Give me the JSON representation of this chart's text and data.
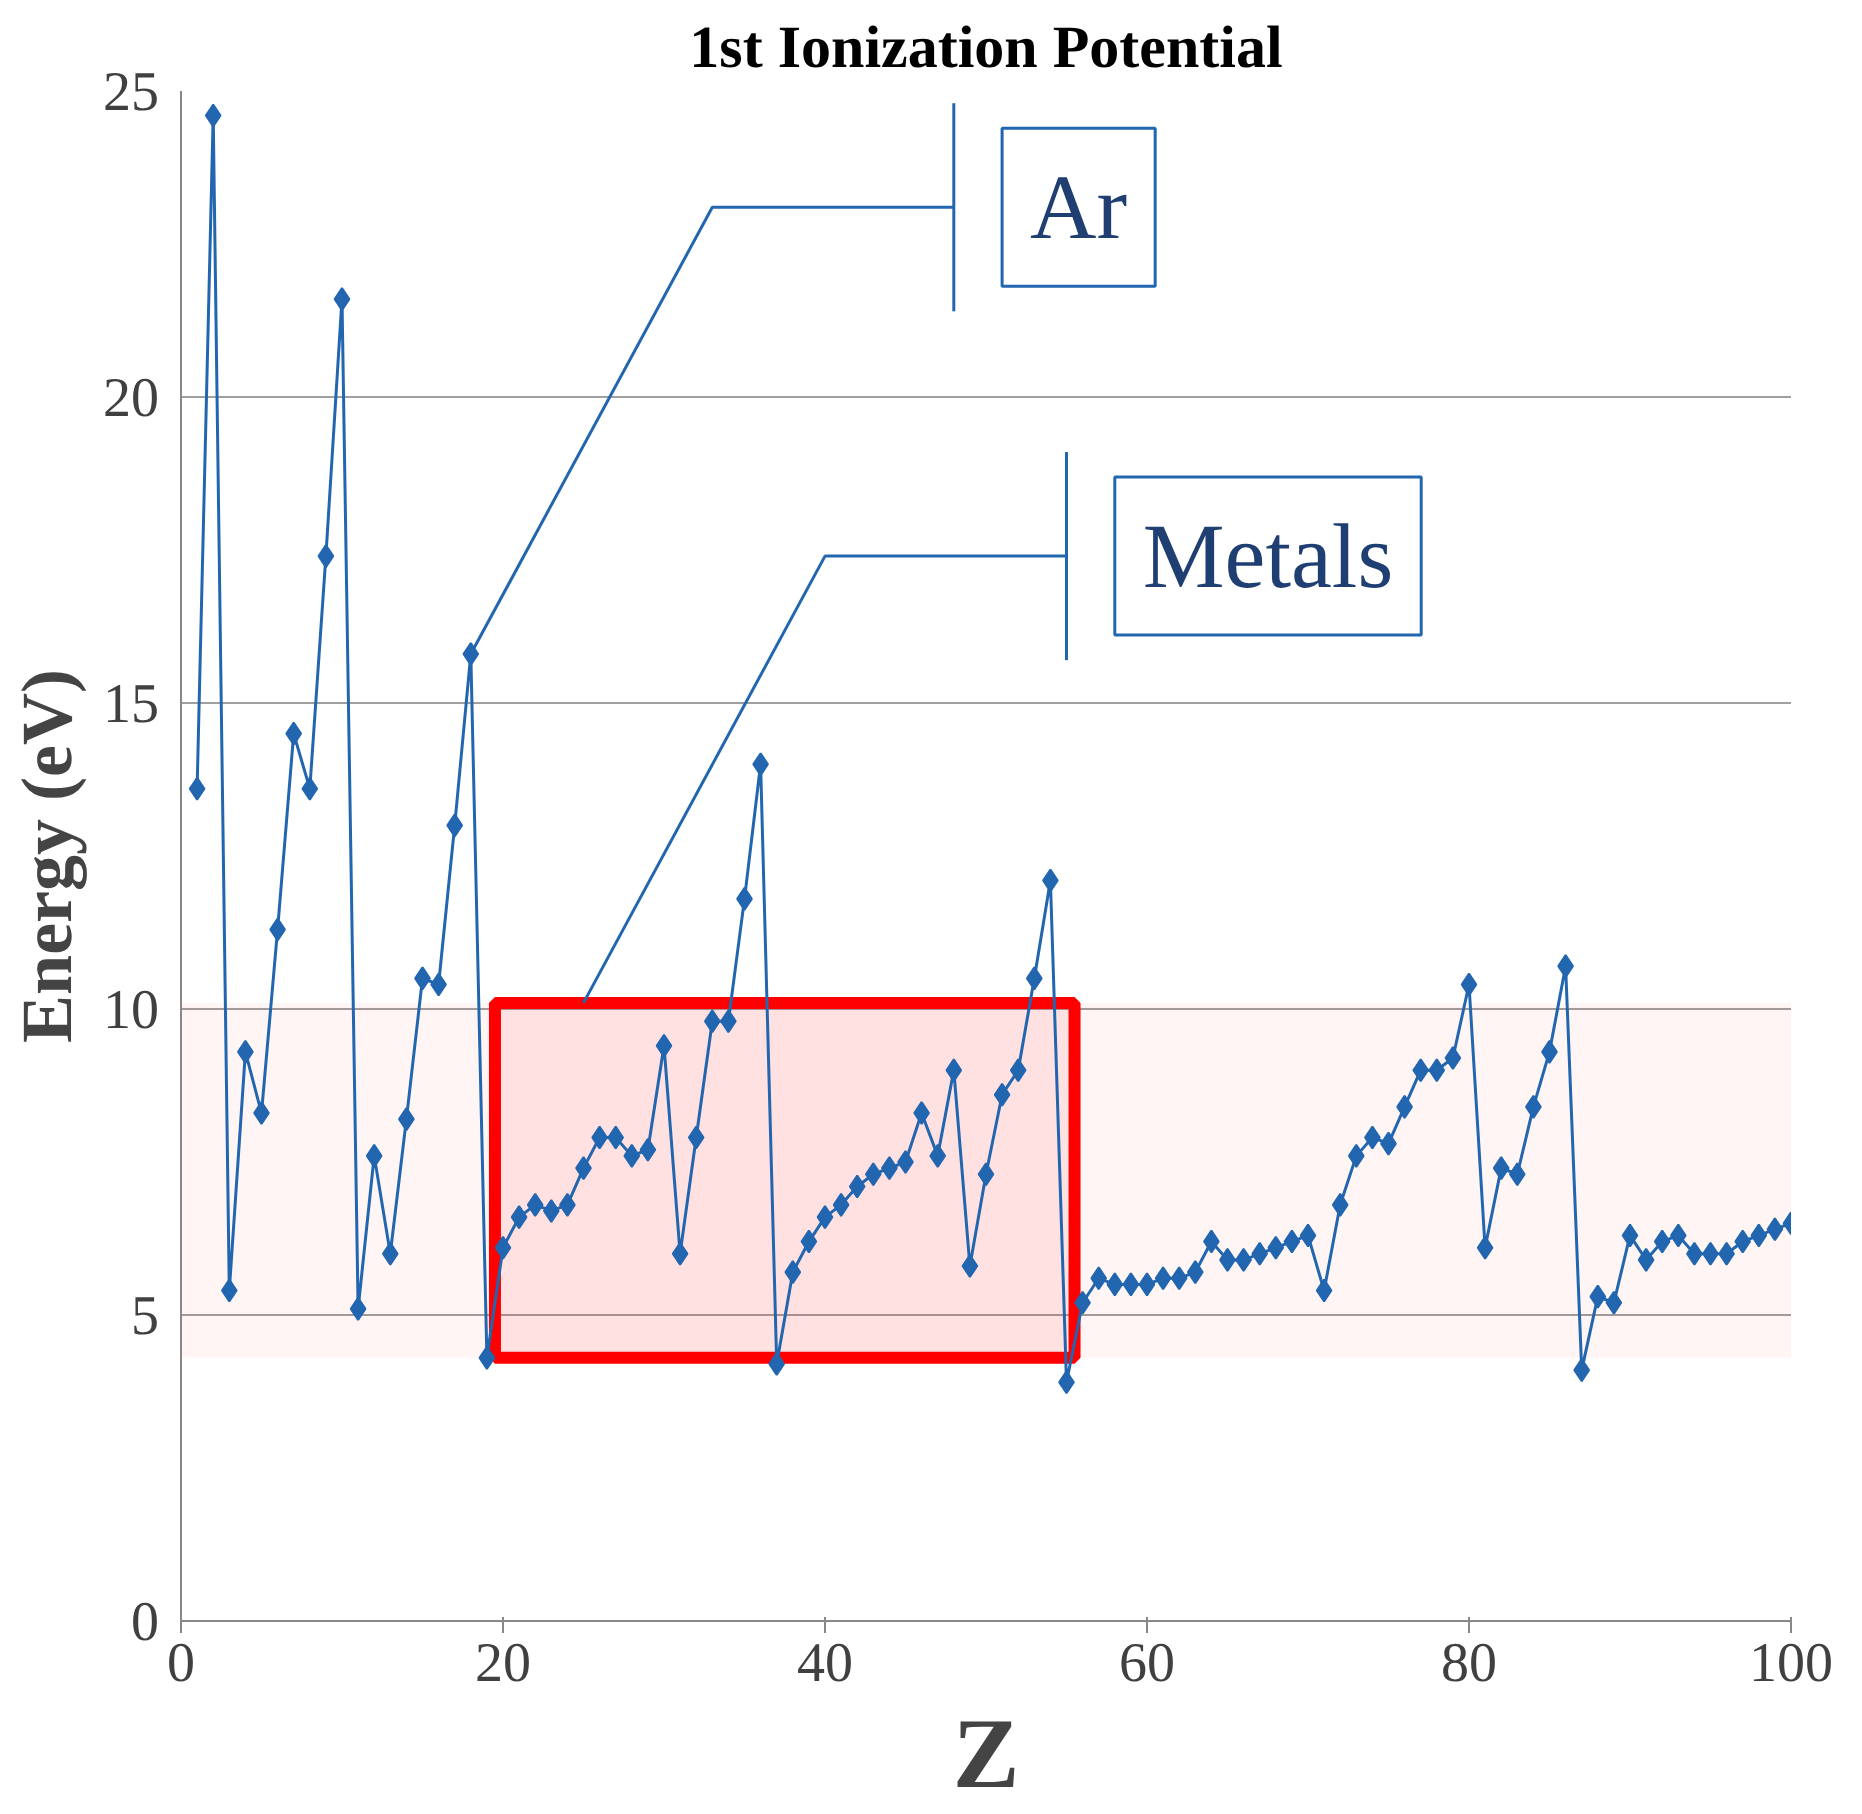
{
  "chart_data": {
    "type": "line",
    "title": "1st Ionization Potential",
    "xlabel": "Z",
    "ylabel": "Energy (eV)",
    "x": [
      1,
      2,
      3,
      4,
      5,
      6,
      7,
      8,
      9,
      10,
      11,
      12,
      13,
      14,
      15,
      16,
      17,
      18,
      19,
      20,
      21,
      22,
      23,
      24,
      25,
      26,
      27,
      28,
      29,
      30,
      31,
      32,
      33,
      34,
      35,
      36,
      37,
      38,
      39,
      40,
      41,
      42,
      43,
      44,
      45,
      46,
      47,
      48,
      49,
      50,
      51,
      52,
      53,
      54,
      55,
      56,
      57,
      58,
      59,
      60,
      61,
      62,
      63,
      64,
      65,
      66,
      67,
      68,
      69,
      70,
      71,
      72,
      73,
      74,
      75,
      76,
      77,
      78,
      79,
      80,
      81,
      82,
      83,
      84,
      85,
      86,
      87,
      88,
      89,
      90,
      91,
      92,
      93,
      94,
      95,
      96,
      97,
      98,
      99,
      100
    ],
    "series": [
      {
        "color": "#2266b0",
        "values": [
          13.6,
          24.6,
          5.4,
          9.3,
          8.3,
          11.3,
          14.5,
          13.6,
          17.4,
          21.6,
          5.1,
          7.6,
          6.0,
          8.2,
          10.5,
          10.4,
          13.0,
          15.8,
          4.3,
          6.1,
          6.6,
          6.8,
          6.7,
          6.8,
          7.4,
          7.9,
          7.9,
          7.6,
          7.7,
          9.4,
          6.0,
          7.9,
          9.8,
          9.8,
          11.8,
          14.0,
          4.2,
          5.7,
          6.2,
          6.6,
          6.8,
          7.1,
          7.3,
          7.4,
          7.5,
          8.3,
          7.6,
          9.0,
          5.8,
          7.3,
          8.6,
          9.0,
          10.5,
          12.1,
          3.9,
          5.2,
          5.6,
          5.5,
          5.5,
          5.5,
          5.6,
          5.6,
          5.7,
          6.2,
          5.9,
          5.9,
          6.0,
          6.1,
          6.2,
          6.3,
          5.4,
          6.8,
          7.6,
          7.9,
          7.8,
          8.4,
          9.0,
          9.0,
          9.2,
          10.4,
          6.1,
          7.4,
          7.3,
          8.4,
          9.3,
          10.7,
          4.1,
          5.3,
          5.2,
          6.3,
          5.9,
          6.2,
          6.3,
          6.0,
          6.0,
          6.0,
          6.2,
          6.3,
          6.4,
          6.5
        ]
      }
    ],
    "xlim": [
      0,
      100
    ],
    "ylim": [
      0,
      25
    ],
    "xticks": [
      0,
      20,
      40,
      60,
      80,
      100
    ],
    "yticks": [
      0,
      5,
      10,
      15,
      20,
      25
    ],
    "grid": "y",
    "marker": "diamond",
    "line_style": "solid",
    "annotations": [
      {
        "text": "Ar",
        "x": 18,
        "y": 15.8
      },
      {
        "text": "Metals",
        "x": 25,
        "y": 10.1
      }
    ],
    "bands": [
      {
        "axis": "x",
        "from": 19.5,
        "to": 55.5,
        "color": "#ff0000"
      },
      {
        "axis": "y",
        "from": 4.3,
        "to": 10.1,
        "color": "#ff0000"
      }
    ]
  }
}
